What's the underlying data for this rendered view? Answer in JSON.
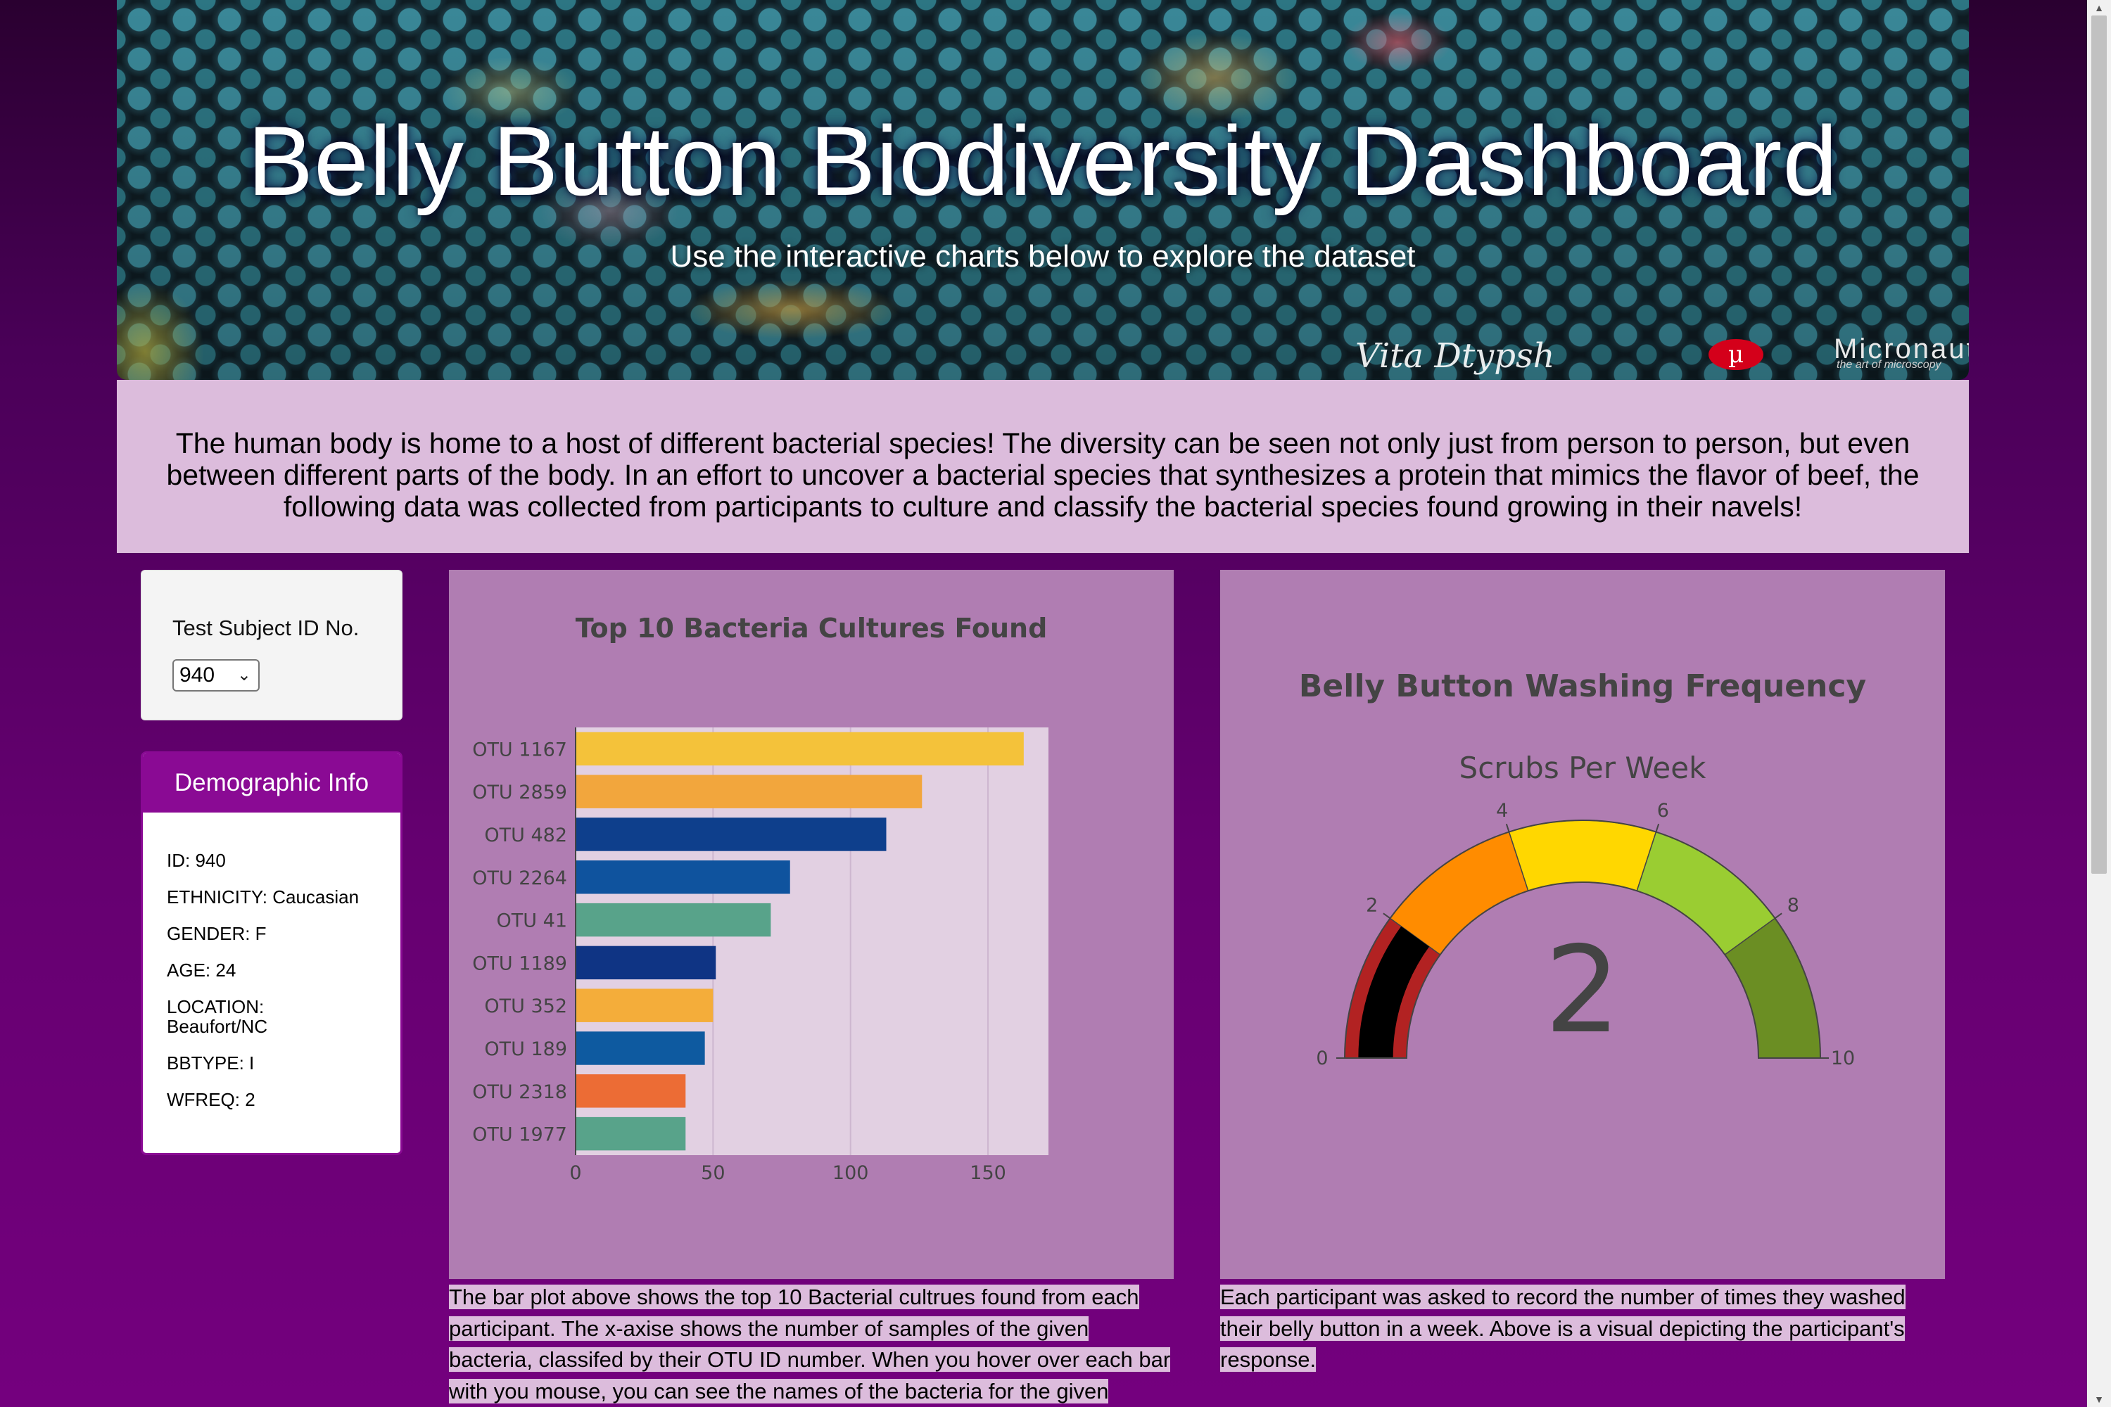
{
  "header": {
    "title": "Belly Button Biodiversity Dashboard",
    "subtitle": "Use the interactive charts below to explore the dataset",
    "brand": "Micronaut",
    "brand_tagline": "the art of microscopy",
    "logo_glyph": "µ"
  },
  "intro": {
    "text": "The human body is home to a host of different bacterial species! The diversity can be seen not only just from person to person, but even between different parts of the body. In an effort to uncover a bacterial species that synthesizes a protein that mimics the flavor of beef, the following data was collected from participants to culture and classify the bacterial species found growing in their navels!"
  },
  "selector": {
    "label": "Test Subject ID No.",
    "value": "940",
    "icon": "chevron-down-icon"
  },
  "demographics": {
    "heading": "Demographic Info",
    "rows": [
      "ID: 940",
      "ETHNICITY: Caucasian",
      "GENDER: F",
      "AGE: 24",
      "LOCATION: Beaufort/NC",
      "BBTYPE: I",
      "WFREQ: 2"
    ],
    "accent": "#8a0a94"
  },
  "chart_data": [
    {
      "type": "bar",
      "orientation": "horizontal",
      "title": "Top 10 Bacteria Cultures Found",
      "categories": [
        "OTU 1167",
        "OTU 2859",
        "OTU 482",
        "OTU 2264",
        "OTU 41",
        "OTU 1189",
        "OTU 352",
        "OTU 189",
        "OTU 2318",
        "OTU 1977"
      ],
      "values": [
        163,
        126,
        113,
        78,
        71,
        51,
        50,
        47,
        40,
        40
      ],
      "colors": [
        "#f4c23a",
        "#f2a63d",
        "#0e3f8c",
        "#0f539e",
        "#58a38a",
        "#0f3484",
        "#f4ad3a",
        "#0e5aa0",
        "#ec6c35",
        "#58a38a"
      ],
      "xticks": [
        0,
        50,
        100,
        150
      ],
      "xlim": [
        0,
        172
      ],
      "grid": true,
      "xlabel": "",
      "ylabel": ""
    },
    {
      "type": "gauge",
      "title": "Belly Button Washing Frequency",
      "gauge_title": "Scrubs Per Week",
      "value": 2,
      "value_label": "2",
      "range": [
        0,
        10
      ],
      "ticks": [
        0,
        2,
        4,
        6,
        8,
        10
      ],
      "steps": [
        {
          "range": [
            0,
            2
          ],
          "color": "#b22222"
        },
        {
          "range": [
            2,
            4
          ],
          "color": "#ff8c00"
        },
        {
          "range": [
            4,
            6
          ],
          "color": "#ffd700"
        },
        {
          "range": [
            6,
            8
          ],
          "color": "#9acd32"
        },
        {
          "range": [
            8,
            10
          ],
          "color": "#6b8e23"
        }
      ],
      "bar_color": "#000000"
    }
  ],
  "captions": {
    "bar": "The bar plot above shows the top 10 Bacterial cultrues found from each participant. The x-axise shows the number of samples of the given bacteria, classifed by their OTU ID number. When you hover over each bar with you mouse, you can see the names of the bacteria for the given",
    "gauge": "Each participant was asked to record the number of times they washed their belly button in a week. Above is a visual depicting the participant's response."
  },
  "scrollbar": {
    "up_glyph": "▲",
    "down_glyph": "▼"
  }
}
